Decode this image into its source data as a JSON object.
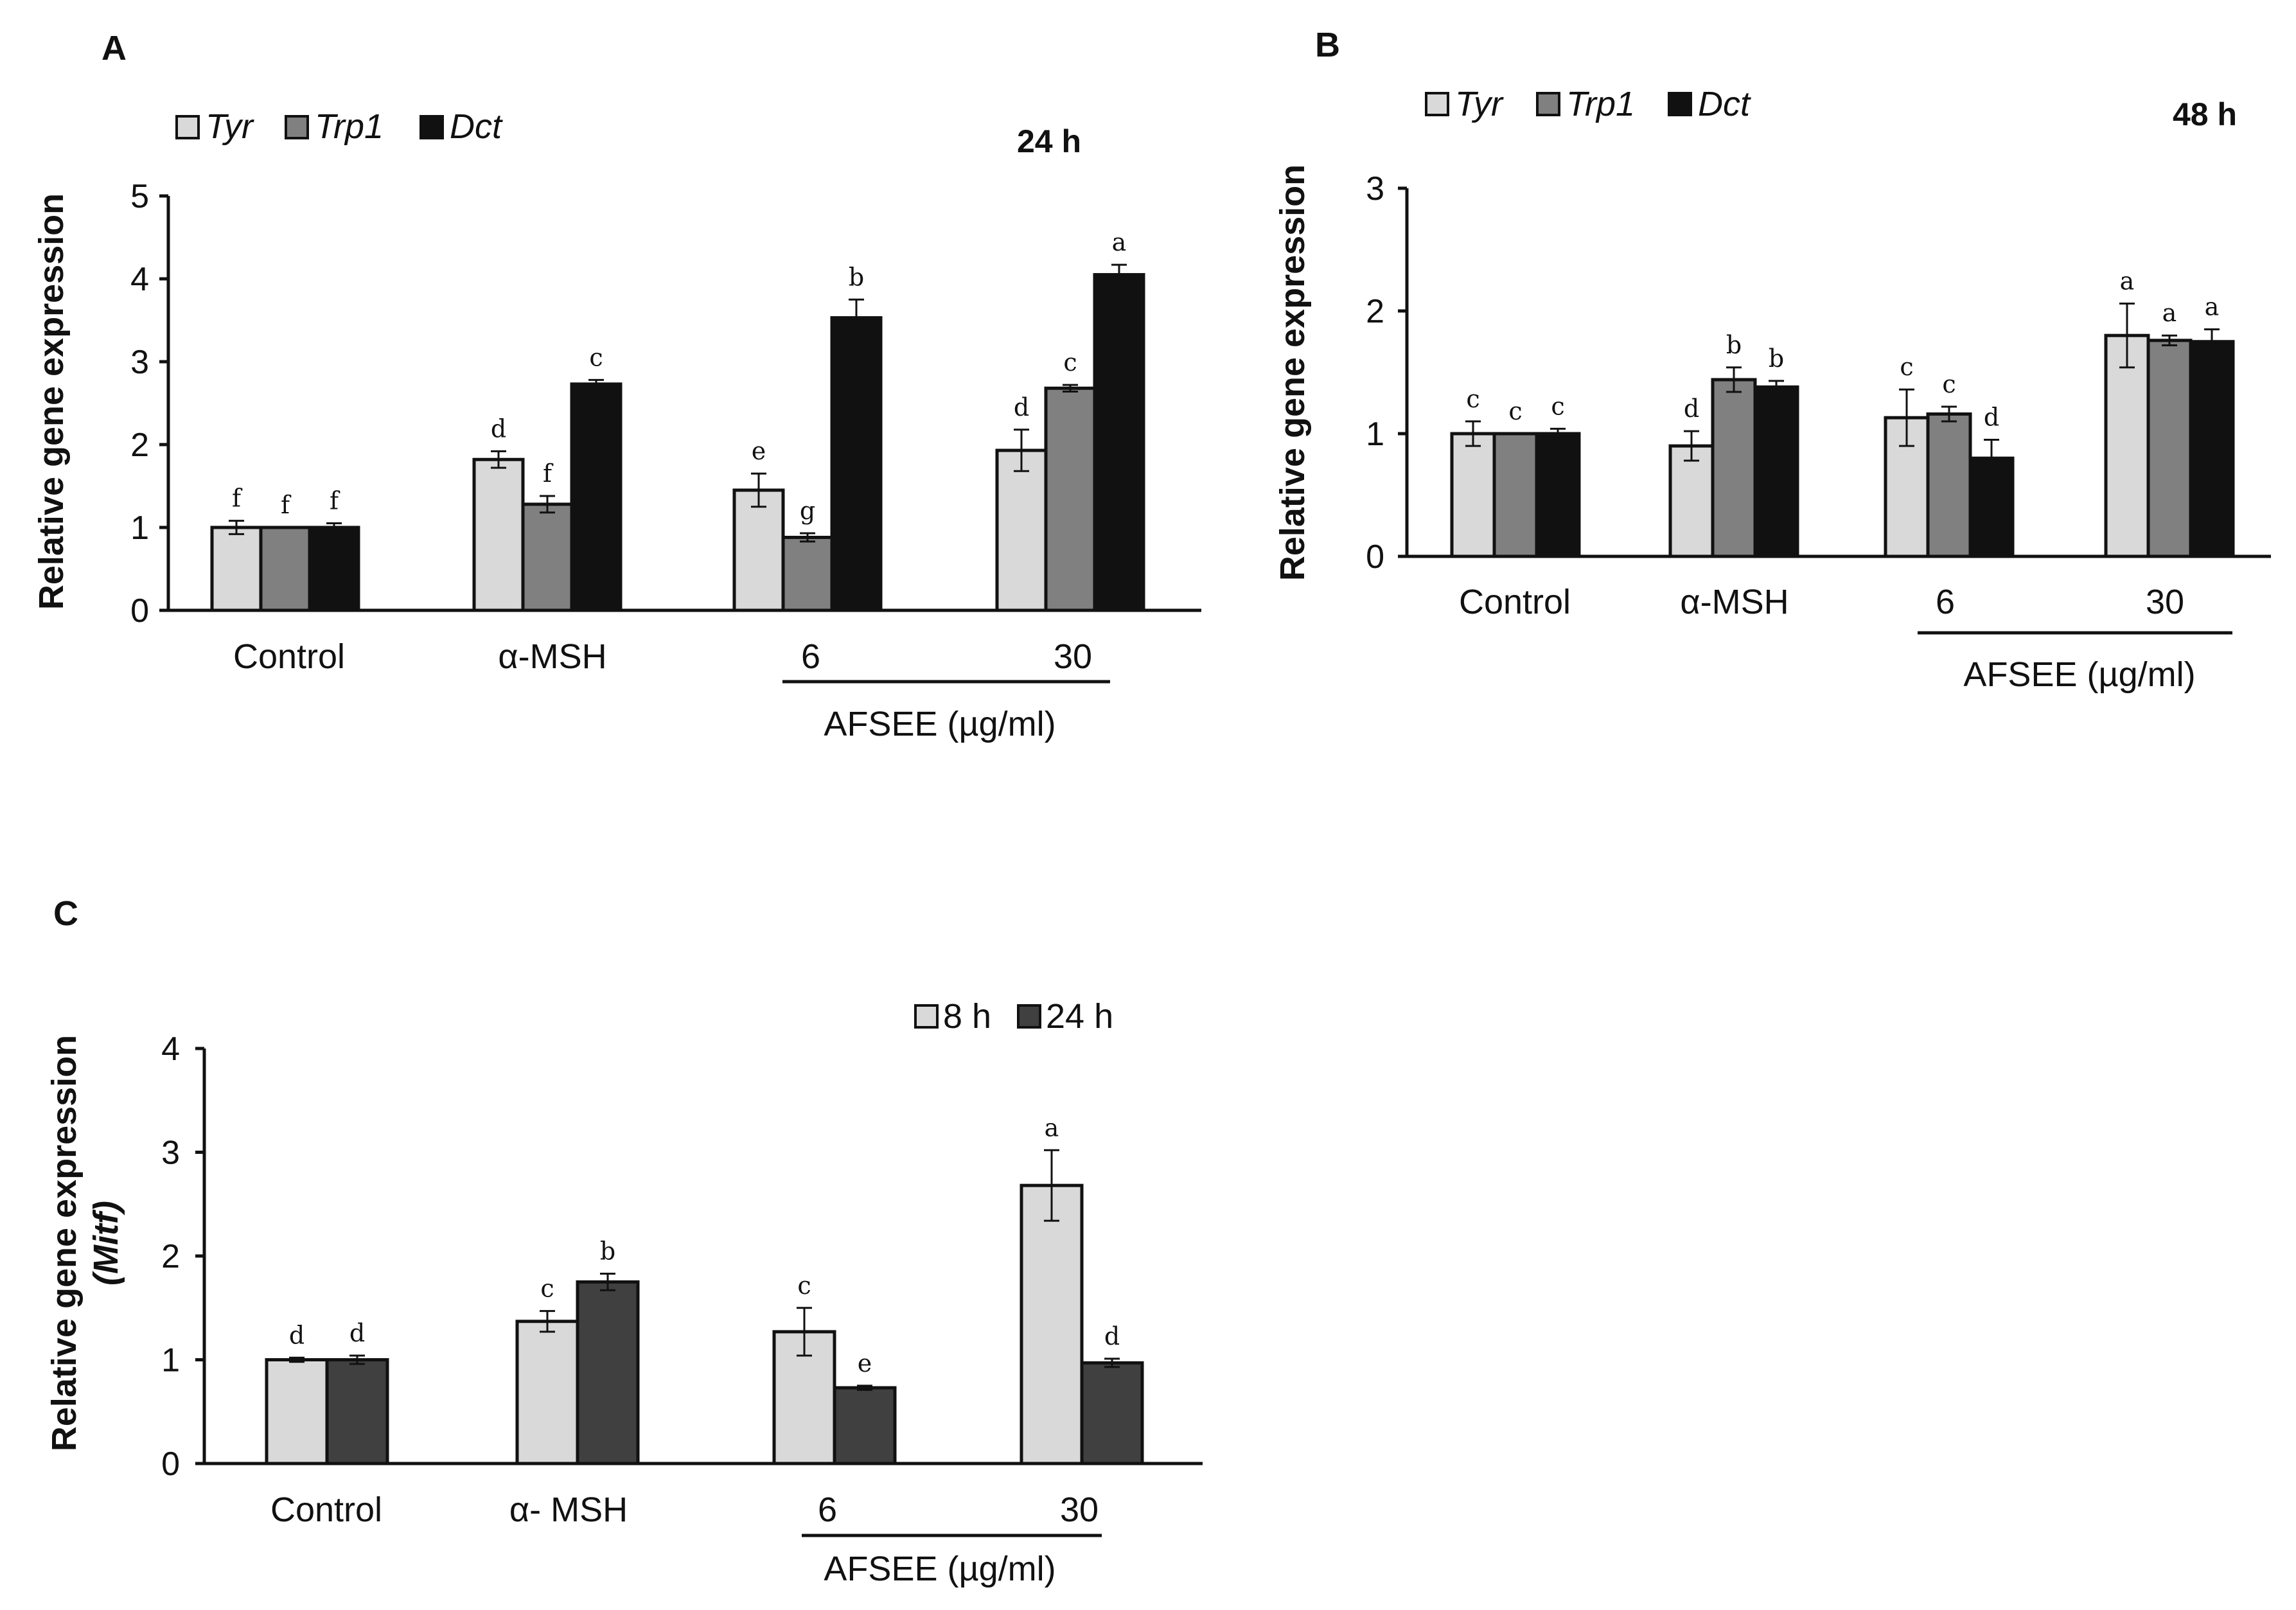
{
  "chart_data": [
    {
      "id": "A",
      "type": "bar",
      "panel_label": "A",
      "title": "24 h",
      "ylabel": "Relative gene expression",
      "ylim": [
        0,
        5
      ],
      "yticks": [
        "0",
        "1",
        "2",
        "3",
        "4",
        "5"
      ],
      "categories": [
        "Control",
        "α-MSH",
        "6",
        "30"
      ],
      "group_label": "AFSEE (µg/ml)",
      "legend": [
        "Tyr",
        "Trp1",
        "Dct"
      ],
      "series": [
        {
          "name": "Tyr",
          "color": "#d9d9d9",
          "values": [
            1.0,
            1.82,
            1.45,
            1.93
          ],
          "errors": [
            0.08,
            0.1,
            0.2,
            0.25
          ],
          "letters": [
            "f",
            "d",
            "e",
            "d"
          ]
        },
        {
          "name": "Trp1",
          "color": "#808080",
          "values": [
            1.0,
            1.28,
            0.88,
            2.68
          ],
          "errors": [
            0.0,
            0.1,
            0.05,
            0.04
          ],
          "letters": [
            "f",
            "f",
            "g",
            "c"
          ]
        },
        {
          "name": "Dct",
          "color": "#111111",
          "values": [
            1.0,
            2.73,
            3.53,
            4.05
          ],
          "errors": [
            0.05,
            0.05,
            0.22,
            0.12
          ],
          "letters": [
            "f",
            "c",
            "b",
            "a"
          ]
        }
      ]
    },
    {
      "id": "B",
      "type": "bar",
      "panel_label": "B",
      "title": "48 h",
      "ylabel": "Relative gene expression",
      "ylim": [
        0,
        3
      ],
      "yticks": [
        "0",
        "1",
        "2",
        "3"
      ],
      "categories": [
        "Control",
        "α-MSH",
        "6",
        "30"
      ],
      "group_label": "AFSEE (µg/ml)",
      "legend": [
        "Tyr",
        "Trp1",
        "Dct"
      ],
      "series": [
        {
          "name": "Tyr",
          "color": "#d9d9d9",
          "values": [
            1.0,
            0.9,
            1.13,
            1.8
          ],
          "errors": [
            0.1,
            0.12,
            0.23,
            0.26
          ],
          "letters": [
            "c",
            "d",
            "c",
            "a"
          ]
        },
        {
          "name": "Trp1",
          "color": "#808080",
          "values": [
            1.0,
            1.44,
            1.16,
            1.76
          ],
          "errors": [
            0.0,
            0.1,
            0.06,
            0.04
          ],
          "letters": [
            "c",
            "b",
            "c",
            "a"
          ]
        },
        {
          "name": "Dct",
          "color": "#111111",
          "values": [
            1.0,
            1.38,
            0.8,
            1.75
          ],
          "errors": [
            0.04,
            0.05,
            0.15,
            0.1
          ],
          "letters": [
            "c",
            "b",
            "d",
            "a"
          ]
        }
      ]
    },
    {
      "id": "C",
      "type": "bar",
      "panel_label": "C",
      "title": "",
      "ylabel": "Relative gene expression",
      "ylabel_sub": "(Mitf)",
      "ylim": [
        0,
        4
      ],
      "yticks": [
        "0",
        "1",
        "2",
        "3",
        "4"
      ],
      "categories": [
        "Control",
        "α- MSH",
        "6",
        "30"
      ],
      "group_label": "AFSEE (µg/ml)",
      "legend": [
        "8 h",
        "24 h"
      ],
      "series": [
        {
          "name": "8 h",
          "color": "#d9d9d9",
          "values": [
            1.0,
            1.37,
            1.27,
            2.68
          ],
          "errors": [
            0.02,
            0.1,
            0.23,
            0.34
          ],
          "letters": [
            "d",
            "c",
            "c",
            "a"
          ]
        },
        {
          "name": "24 h",
          "color": "#404040",
          "values": [
            1.0,
            1.75,
            0.73,
            0.97
          ],
          "errors": [
            0.04,
            0.08,
            0.02,
            0.04
          ],
          "letters": [
            "d",
            "b",
            "e",
            "d"
          ]
        }
      ]
    }
  ]
}
